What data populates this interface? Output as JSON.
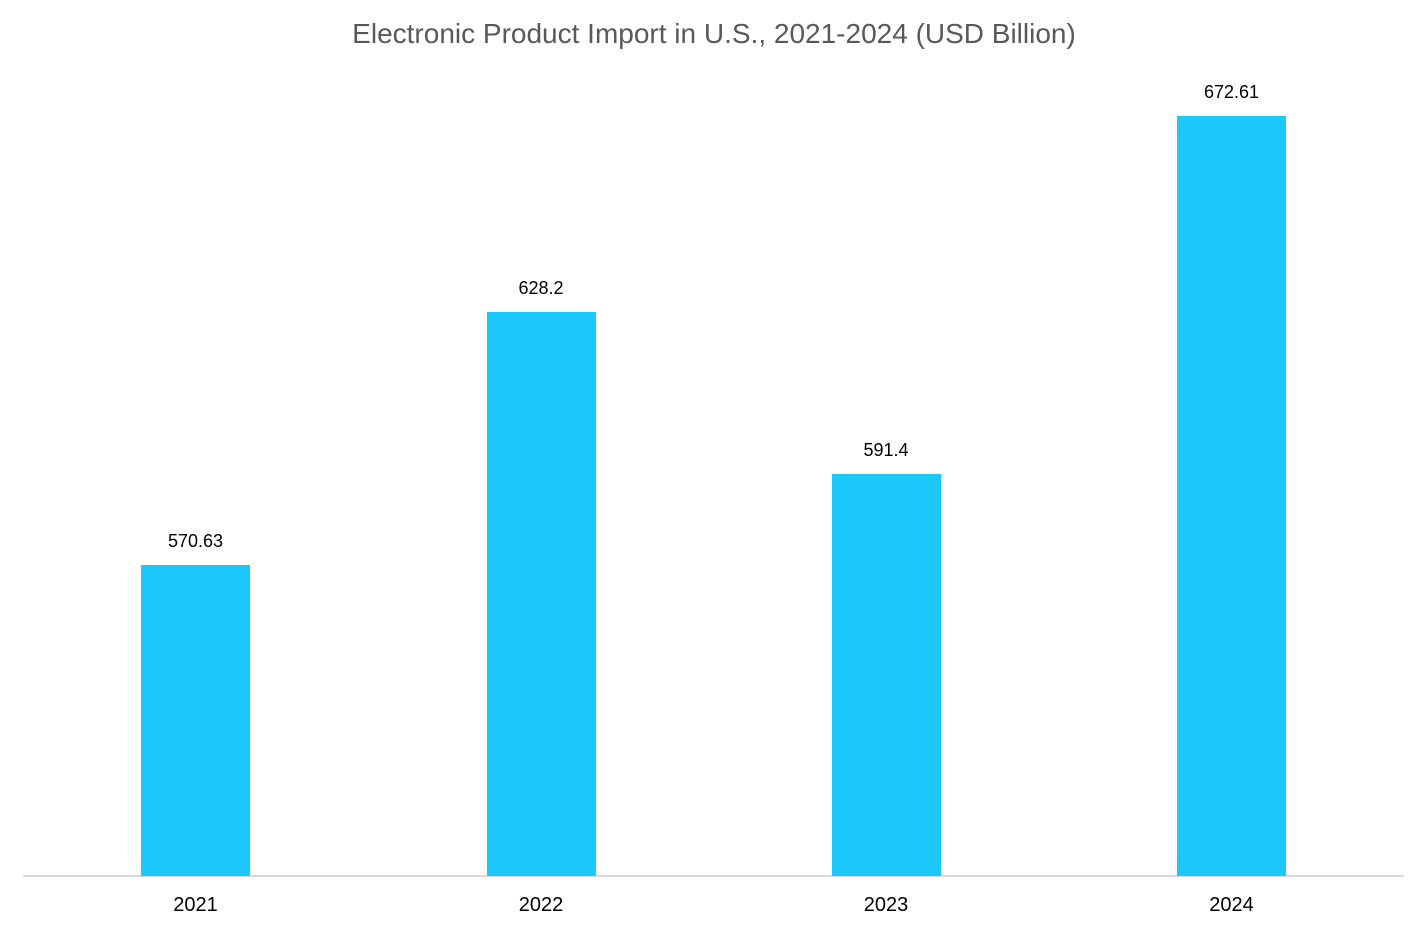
{
  "chart_data": {
    "type": "bar",
    "title": "Electronic Product Import in U.S., 2021-2024 (USD Billion)",
    "categories": [
      "2021",
      "2022",
      "2023",
      "2024"
    ],
    "values": [
      570.63,
      628.2,
      591.4,
      672.61
    ],
    "value_labels": [
      "570.63",
      "628.2",
      "591.4",
      "672.61"
    ],
    "xlabel": "",
    "ylabel": "",
    "ylim": [
      500,
      690
    ],
    "grid": false,
    "legend": "none",
    "bar_color": "#1cc8fc",
    "axis_line_color": "#d9d9d9",
    "title_color": "#595959"
  }
}
